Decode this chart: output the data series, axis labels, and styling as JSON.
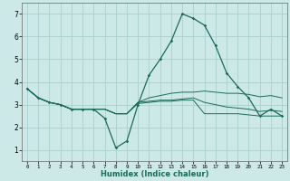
{
  "title": "",
  "xlabel": "Humidex (Indice chaleur)",
  "background_color": "#cce9e8",
  "grid_color": "#aacfce",
  "line_color": "#1a6b5a",
  "xlim": [
    -0.5,
    23.5
  ],
  "ylim": [
    0.5,
    7.5
  ],
  "xticks": [
    0,
    1,
    2,
    3,
    4,
    5,
    6,
    7,
    8,
    9,
    10,
    11,
    12,
    13,
    14,
    15,
    16,
    17,
    18,
    19,
    20,
    21,
    22,
    23
  ],
  "yticks": [
    1,
    2,
    3,
    4,
    5,
    6,
    7
  ],
  "series_main": [
    3.7,
    3.3,
    3.1,
    3.0,
    2.8,
    2.8,
    2.8,
    2.4,
    1.1,
    1.4,
    3.0,
    4.3,
    5.0,
    5.8,
    7.0,
    6.8,
    6.5,
    5.6,
    4.4,
    3.8,
    3.3,
    2.5,
    2.8,
    2.5
  ],
  "series_high": [
    3.7,
    3.3,
    3.1,
    3.0,
    2.8,
    2.8,
    2.8,
    2.8,
    2.6,
    2.6,
    3.1,
    3.3,
    3.4,
    3.5,
    3.55,
    3.55,
    3.6,
    3.55,
    3.5,
    3.5,
    3.45,
    3.35,
    3.4,
    3.3
  ],
  "series_mid": [
    3.7,
    3.3,
    3.1,
    3.0,
    2.8,
    2.8,
    2.8,
    2.8,
    2.6,
    2.6,
    3.1,
    3.15,
    3.2,
    3.2,
    3.25,
    3.3,
    3.1,
    3.0,
    2.9,
    2.85,
    2.8,
    2.7,
    2.75,
    2.7
  ],
  "series_low": [
    3.7,
    3.3,
    3.1,
    3.0,
    2.8,
    2.8,
    2.8,
    2.8,
    2.6,
    2.6,
    3.05,
    3.1,
    3.15,
    3.15,
    3.2,
    3.2,
    2.6,
    2.6,
    2.6,
    2.6,
    2.55,
    2.5,
    2.5,
    2.5
  ]
}
